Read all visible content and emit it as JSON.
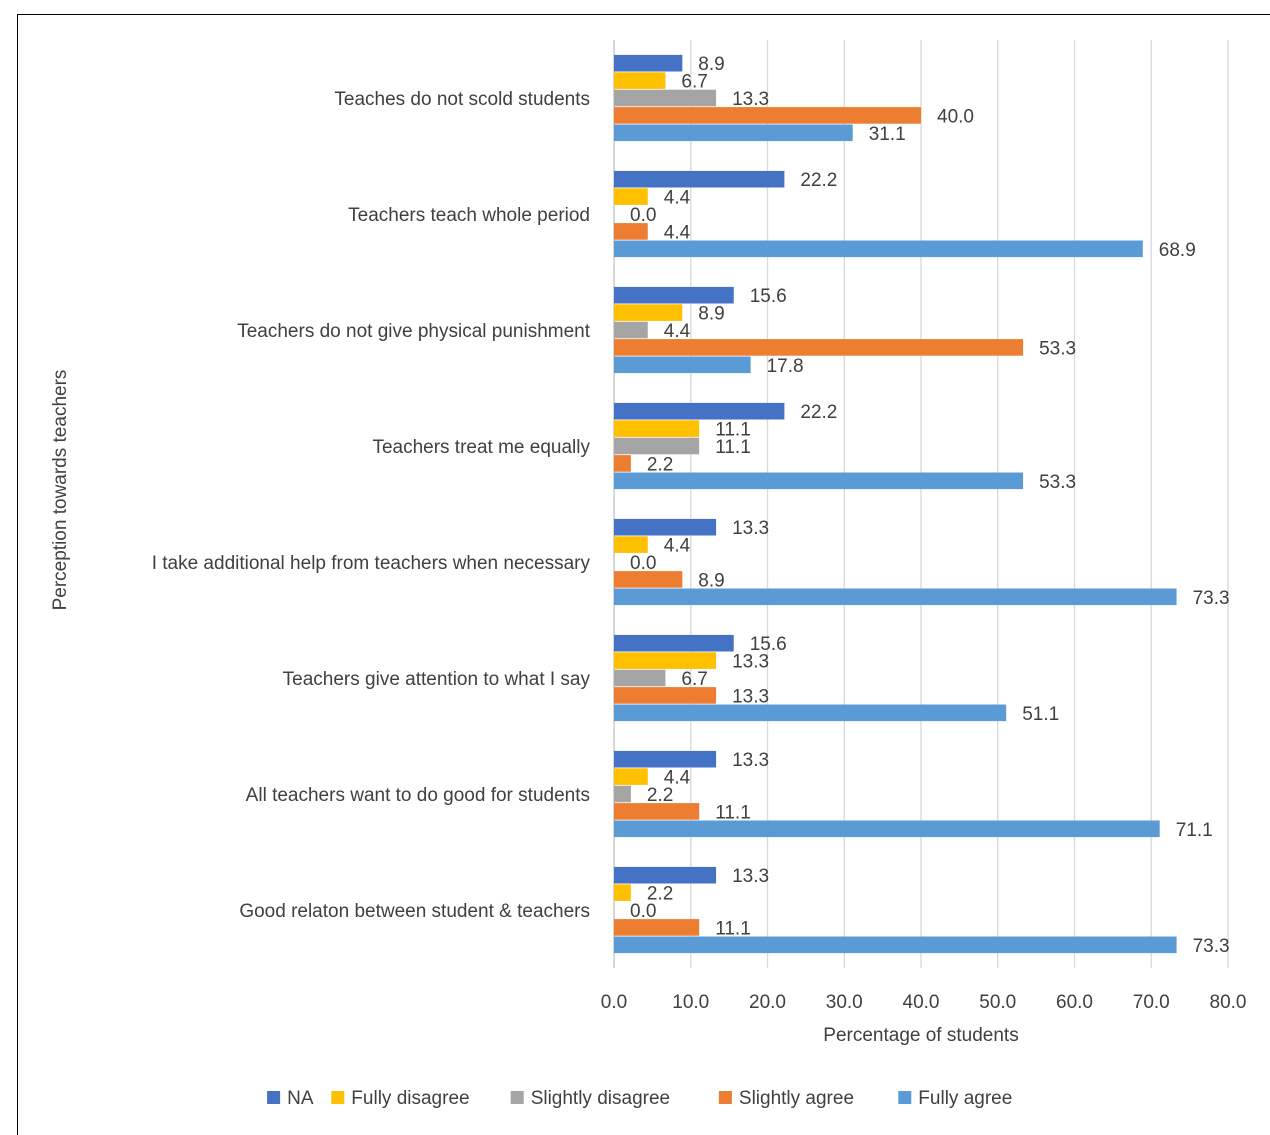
{
  "chart_data": {
    "type": "bar",
    "orientation": "horizontal",
    "title": "",
    "xlabel": "Percentage of students",
    "ylabel": "Perception towards teachers",
    "xlim": [
      0,
      80
    ],
    "x_ticks": [
      "0.0",
      "10.0",
      "20.0",
      "30.0",
      "40.0",
      "50.0",
      "60.0",
      "70.0",
      "80.0"
    ],
    "grid": "vertical",
    "legend_position": "bottom",
    "categories": [
      "Teaches do not scold students",
      "Teachers teach whole period",
      "Teachers do not give physical punishment",
      "Teachers treat me equally",
      "I take additional help from teachers when necessary",
      "Teachers give attention to what I say",
      "All teachers want to do good for students",
      "Good relaton between student & teachers"
    ],
    "series": [
      {
        "name": "NA",
        "color": "#4472C4",
        "values": [
          8.9,
          22.2,
          15.6,
          22.2,
          13.3,
          15.6,
          13.3,
          13.3
        ]
      },
      {
        "name": "Fully disagree",
        "color": "#FFC000",
        "values": [
          6.7,
          4.4,
          8.9,
          11.1,
          4.4,
          13.3,
          4.4,
          2.2
        ]
      },
      {
        "name": "Slightly disagree",
        "color": "#A5A5A5",
        "values": [
          13.3,
          0.0,
          4.4,
          11.1,
          0.0,
          6.7,
          2.2,
          0.0
        ]
      },
      {
        "name": "Slightly agree",
        "color": "#ED7D31",
        "values": [
          40.0,
          4.4,
          53.3,
          2.2,
          8.9,
          13.3,
          11.1,
          11.1
        ]
      },
      {
        "name": "Fully agree",
        "color": "#5B9BD5",
        "values": [
          31.1,
          68.9,
          17.8,
          53.3,
          73.3,
          51.1,
          71.1,
          73.3
        ]
      }
    ]
  }
}
